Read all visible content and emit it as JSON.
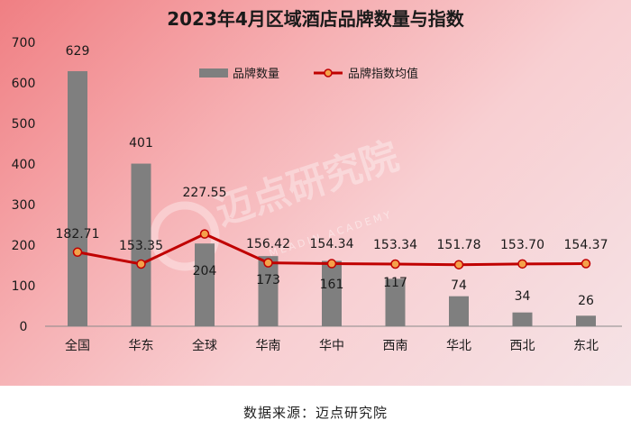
{
  "chart_data": {
    "type": "bar",
    "title": "2023年4月区域酒店品牌数量与指数",
    "categories": [
      "全国",
      "华东",
      "全球",
      "华南",
      "华中",
      "西南",
      "华北",
      "西北",
      "东北"
    ],
    "series": [
      {
        "name": "品牌数量",
        "type": "bar",
        "values": [
          629,
          401,
          204,
          173,
          161,
          117,
          74,
          34,
          26
        ],
        "color": "#7f7f7f"
      },
      {
        "name": "品牌指数均值",
        "type": "line",
        "values": [
          182.71,
          153.35,
          227.55,
          156.42,
          154.34,
          153.34,
          151.78,
          153.7,
          154.37
        ],
        "color": "#c00000"
      }
    ],
    "bar_labels": [
      "629",
      "401",
      "204",
      "173",
      "161",
      "117",
      "74",
      "34",
      "26"
    ],
    "line_labels": [
      "182.71",
      "153.35",
      "227.55",
      "156.42",
      "154.34",
      "153.34",
      "151.78",
      "153.70",
      "154.37"
    ],
    "ylim": [
      0,
      700
    ],
    "yticks": [
      0,
      100,
      200,
      300,
      400,
      500,
      600,
      700
    ],
    "legend_position": "top-center",
    "grid": false
  },
  "watermark": {
    "text": "迈点研究院",
    "sub": "MEADIN ACADEMY"
  },
  "footer": {
    "source": "数据来源：迈点研究院"
  }
}
